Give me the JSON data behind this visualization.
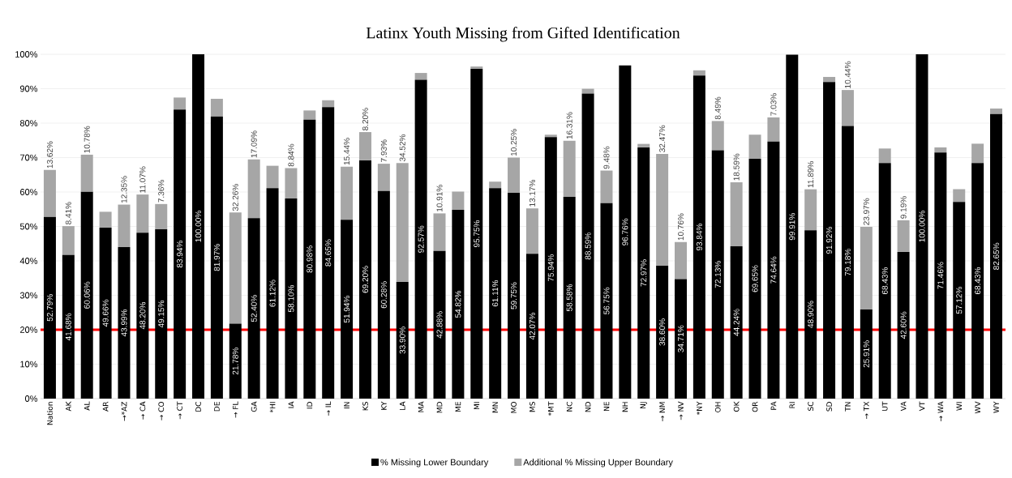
{
  "chart_data": {
    "type": "bar",
    "stacked": true,
    "title": "Latinx Youth Missing from Gifted Identification",
    "categories": [
      "Nation",
      "AK",
      "AL",
      "AR",
      "→*AZ",
      "→ CA",
      "→ CO",
      "→ CT",
      "DC",
      "DE",
      "→ FL",
      "GA",
      "*HI",
      "IA",
      "ID",
      "→ IL",
      "IN",
      "KS",
      "KY",
      "LA",
      "MA",
      "MD",
      "ME",
      "MI",
      "MN",
      "MO",
      "MS",
      "*MT",
      "NC",
      "ND",
      "NE",
      "NH",
      "NJ",
      "→ NM",
      "→ NV",
      "*NY",
      "OH",
      "OK",
      "OR",
      "PA",
      "RI",
      "SC",
      "SD",
      "TN",
      "→ TX",
      "UT",
      "VA",
      "VT",
      "→ WA",
      "WI",
      "WV",
      "WY"
    ],
    "series": [
      {
        "name": "% Missing Lower Boundary",
        "color": "#000000",
        "values": [
          52.79,
          41.68,
          60.06,
          49.66,
          43.99,
          48.2,
          49.15,
          83.94,
          100.0,
          81.97,
          21.78,
          52.4,
          61.12,
          58.1,
          80.98,
          84.65,
          51.94,
          69.2,
          60.28,
          33.9,
          92.57,
          42.88,
          54.82,
          95.75,
          61.11,
          59.75,
          42.07,
          75.94,
          58.58,
          88.59,
          56.75,
          96.76,
          72.97,
          38.6,
          34.71,
          93.84,
          72.13,
          44.24,
          69.65,
          74.64,
          99.91,
          48.9,
          91.92,
          79.18,
          25.91,
          68.43,
          42.6,
          100.0,
          71.46,
          57.12,
          68.43,
          82.65
        ],
        "value_labels": [
          "52.79%",
          "41.68%",
          "60.06%",
          "49.66%",
          "43.99%",
          "48.20%",
          "49.15%",
          "83.94%",
          "100.00%",
          "81.97%",
          "21.78%",
          "52.40%",
          "61.12%",
          "58.10%",
          "80.98%",
          "84.65%",
          "51.94%",
          "69.20%",
          "60.28%",
          "33.90%",
          "92.57%",
          "42.88%",
          "54.82%",
          "95.75%",
          "61.11%",
          "59.75%",
          "42.07%",
          "75.94%",
          "58.58%",
          "88.59%",
          "56.75%",
          "96.76%",
          "72.97%",
          "38.60%",
          "34.71%",
          "93.84%",
          "72.13%",
          "44.24%",
          "69.65%",
          "74.64%",
          "99.91%",
          "48.90%",
          "91.92%",
          "79.18%",
          "25.91%",
          "68.43%",
          "42.60%",
          "100.00%",
          "71.46%",
          "57.12%",
          "68.43%",
          "82.65%"
        ]
      },
      {
        "name": "Additional % Missing Upper Boundary",
        "color": "#a6a6a6",
        "values": [
          13.62,
          8.41,
          10.78,
          4.6,
          12.35,
          11.07,
          7.36,
          3.5,
          0,
          5.1,
          32.26,
          17.09,
          6.5,
          8.84,
          2.7,
          2.0,
          15.44,
          8.2,
          7.93,
          34.52,
          2.0,
          10.91,
          5.3,
          0.7,
          1.9,
          10.25,
          13.17,
          0.7,
          16.31,
          1.4,
          9.48,
          null,
          1.0,
          32.47,
          10.76,
          1.5,
          8.49,
          18.59,
          7.0,
          7.03,
          null,
          11.89,
          1.5,
          10.44,
          23.97,
          4.2,
          9.19,
          0,
          1.5,
          3.7,
          5.6,
          1.6
        ],
        "value_labels": [
          "13.62%",
          "8.41%",
          "10.78%",
          null,
          "12.35%",
          "11.07%",
          "7.36%",
          null,
          null,
          null,
          "32.26%",
          "17.09%",
          null,
          "8.84%",
          null,
          null,
          "15.44%",
          "8.20%",
          "7.93%",
          "34.52%",
          null,
          "10.91%",
          null,
          null,
          null,
          "10.25%",
          "13.17%",
          null,
          "16.31%",
          null,
          "9.48%",
          null,
          null,
          "32.47%",
          "10.76%",
          null,
          "8.49%",
          "18.59%",
          null,
          "7.03%",
          null,
          "11.89%",
          null,
          "10.44%",
          "23.97%",
          null,
          "9.19%",
          null,
          null,
          null,
          null,
          null
        ]
      }
    ],
    "ylim": [
      0,
      100
    ],
    "yticks": [
      {
        "value": 0,
        "label": "0%"
      },
      {
        "value": 10,
        "label": "10%"
      },
      {
        "value": 20,
        "label": "20%"
      },
      {
        "value": 30,
        "label": "30%"
      },
      {
        "value": 40,
        "label": "40%"
      },
      {
        "value": 50,
        "label": "50%"
      },
      {
        "value": 60,
        "label": "60%"
      },
      {
        "value": 70,
        "label": "70%"
      },
      {
        "value": 80,
        "label": "80%"
      },
      {
        "value": 90,
        "label": "90%"
      },
      {
        "value": 100,
        "label": "100%"
      }
    ],
    "grid": "y",
    "legend": "bottom",
    "ref_lines": [
      {
        "axis": "y",
        "value": 20,
        "color": "#ff0000"
      }
    ]
  }
}
